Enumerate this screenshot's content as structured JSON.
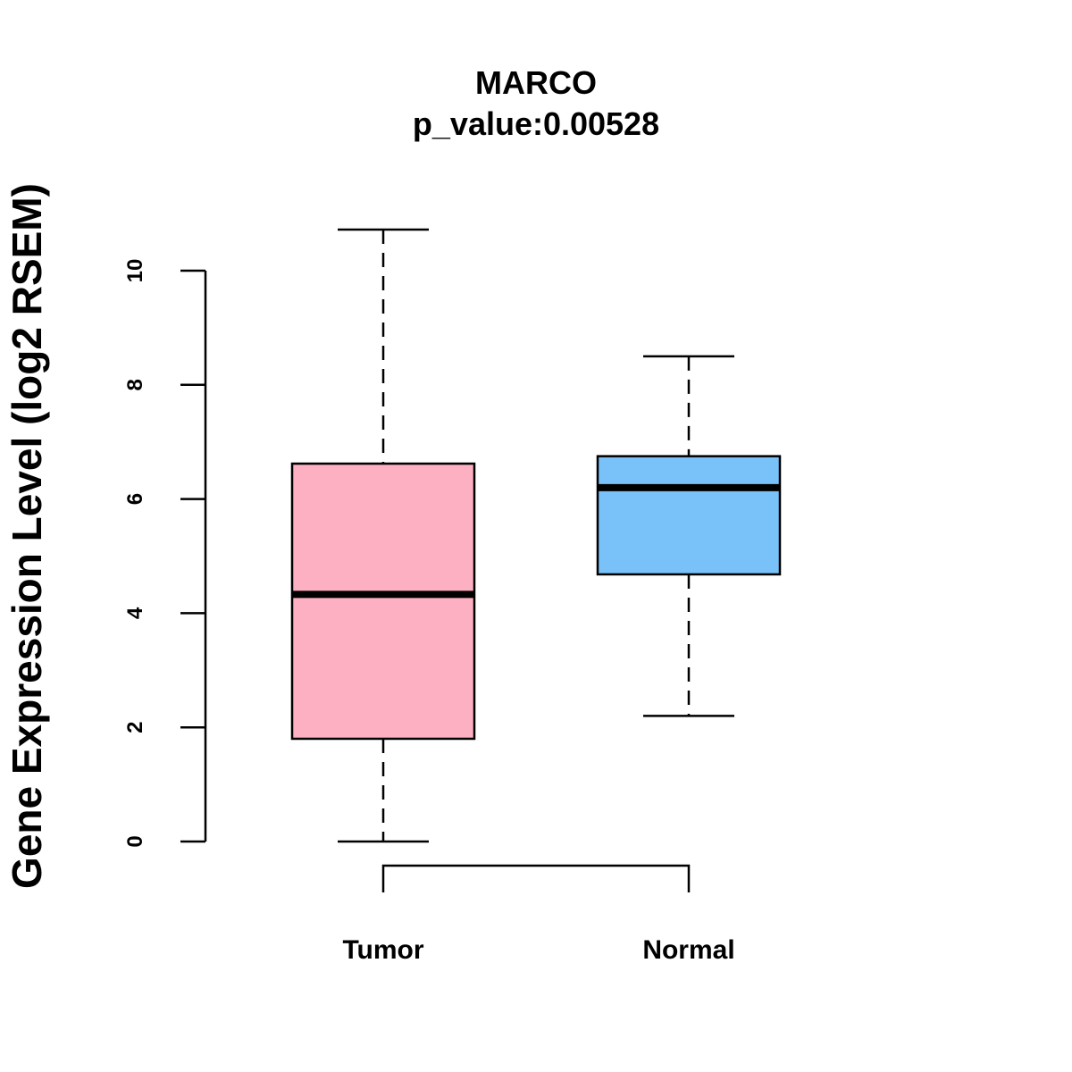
{
  "chart_data": {
    "type": "boxplot",
    "title": "MARCO",
    "subtitle": "p_value:0.00528",
    "xlabel": "",
    "ylabel": "Gene Expression Level (log2 RSEM)",
    "ylim": [
      0,
      10
    ],
    "yticks": [
      0,
      2,
      4,
      6,
      8,
      10
    ],
    "yticks_text": [
      "0",
      "2",
      "4",
      "6",
      "8",
      "10"
    ],
    "categories": [
      "Tumor",
      "Normal"
    ],
    "series": [
      {
        "name": "Tumor",
        "min": 0.0,
        "q1": 1.8,
        "median": 4.33,
        "q3": 6.62,
        "max": 10.72,
        "color": "#FDB0C2"
      },
      {
        "name": "Normal",
        "min": 2.2,
        "q1": 4.68,
        "median": 6.2,
        "q3": 6.75,
        "max": 8.5,
        "color": "#78C1F9"
      }
    ],
    "comparison_bracket": [
      "Tumor",
      "Normal"
    ],
    "grid": false,
    "legend": "none"
  }
}
